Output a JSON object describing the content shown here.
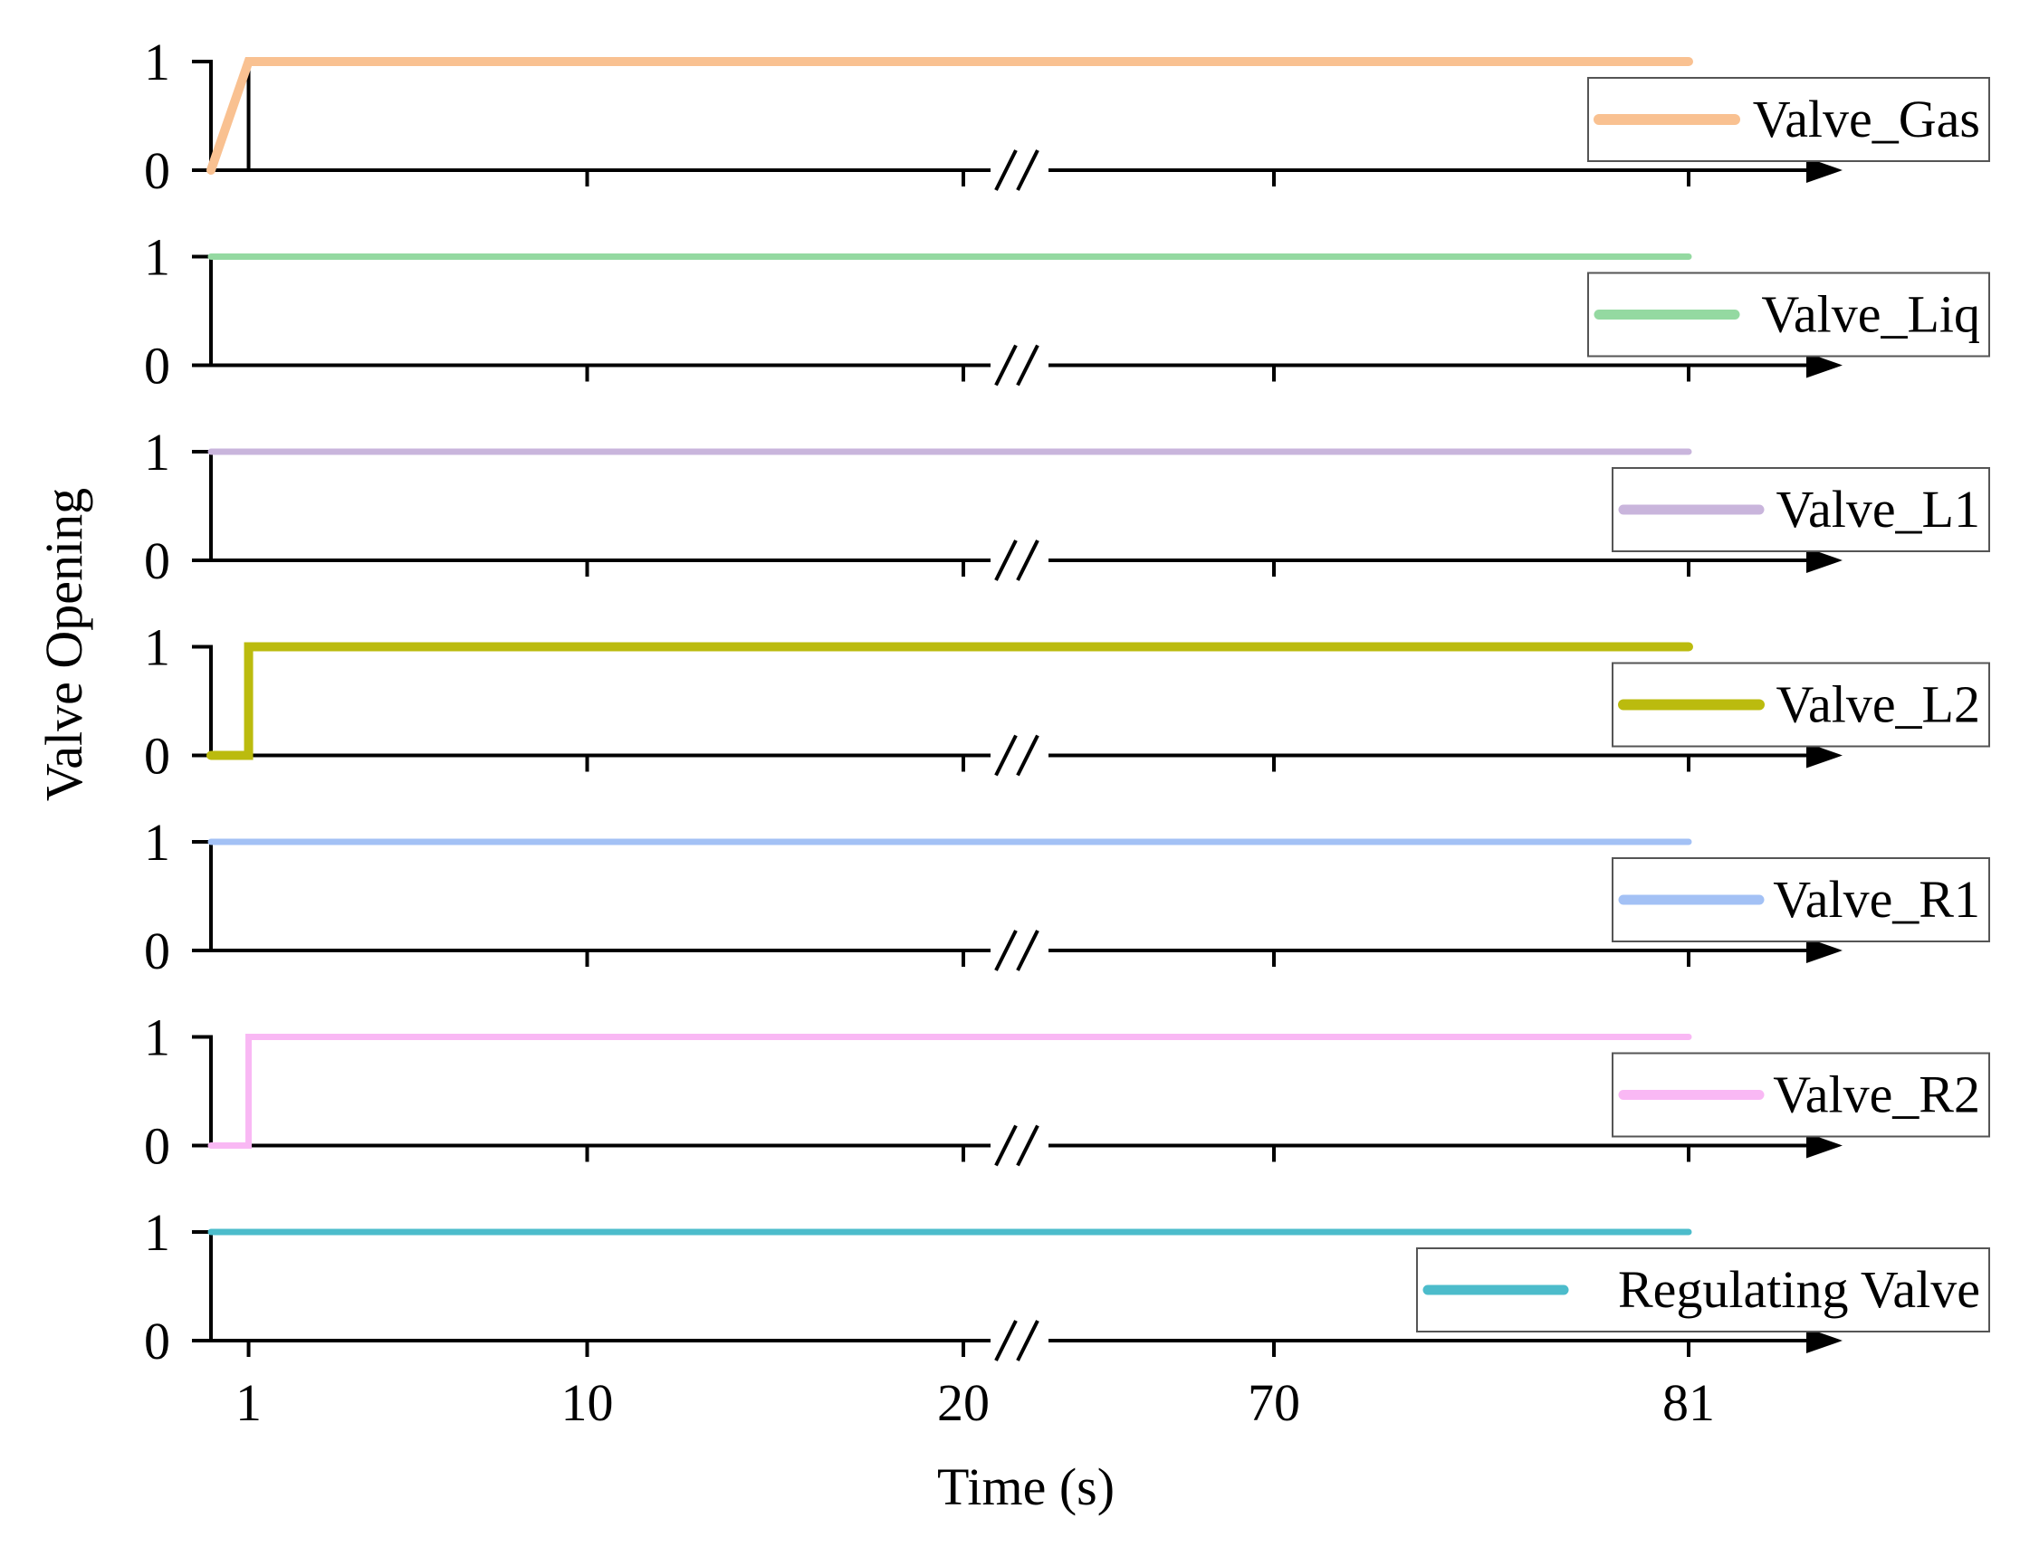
{
  "chart_data": {
    "type": "line",
    "subtype": "stacked step plots with broken x-axis",
    "ylabel": "Valve Opening",
    "xlabel": "Time (s)",
    "x_ticks": [
      "1",
      "10",
      "20",
      "70",
      "81"
    ],
    "x_break": "between 20 and 70",
    "y_ticks": [
      "0",
      "1"
    ],
    "ylim": [
      0,
      1
    ],
    "xlim": [
      0,
      81
    ],
    "series": [
      {
        "name": "Valve_Gas",
        "color": "#F9C191",
        "points": [
          [
            0,
            0
          ],
          [
            1,
            1
          ],
          [
            81,
            1
          ]
        ]
      },
      {
        "name": "Valve_Liq",
        "color": "#94D9A1",
        "points": [
          [
            0,
            1
          ],
          [
            81,
            1
          ]
        ]
      },
      {
        "name": "Valve_L1",
        "color": "#C9B5DC",
        "points": [
          [
            0,
            1
          ],
          [
            81,
            1
          ]
        ]
      },
      {
        "name": "Valve_L2",
        "color": "#BBBB0E",
        "points": [
          [
            0,
            0
          ],
          [
            1,
            0
          ],
          [
            1,
            1
          ],
          [
            81,
            1
          ]
        ]
      },
      {
        "name": "Valve_R1",
        "color": "#A3C1F5",
        "points": [
          [
            0,
            1
          ],
          [
            81,
            1
          ]
        ]
      },
      {
        "name": "Valve_R2",
        "color": "#F9B8F4",
        "points": [
          [
            0,
            0
          ],
          [
            1,
            0
          ],
          [
            1,
            1
          ],
          [
            81,
            1
          ]
        ]
      },
      {
        "name": "Regulating Valve",
        "color": "#4CBCCB",
        "points": [
          [
            0,
            1
          ],
          [
            81,
            1
          ]
        ]
      }
    ]
  }
}
